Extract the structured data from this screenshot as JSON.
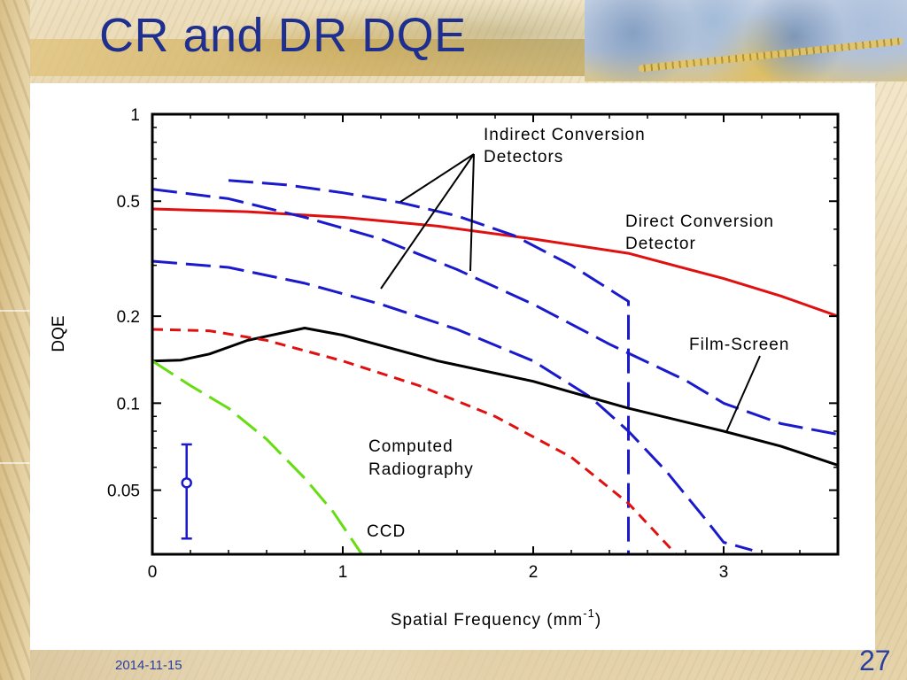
{
  "slide": {
    "title": "CR and DR DQE",
    "date": "2014-11-15",
    "page_number": "27"
  },
  "colors": {
    "title": "#1f2f8f",
    "footer": "#2a3f9f",
    "direct": "#e01010",
    "indirect": "#1a1acc",
    "film": "#000000",
    "cr": "#e01010",
    "ccd": "#66dd11"
  },
  "chart_data": {
    "type": "line",
    "title": "",
    "xlabel": "Spatial Frequency (mm",
    "xlabel_sup": "-1",
    "xlabel_end": ")",
    "ylabel": "DQE",
    "yscale": "log",
    "xlim": [
      0,
      3.6
    ],
    "ylim": [
      0.03,
      1
    ],
    "x_ticks": [
      {
        "value": 0,
        "label": "0"
      },
      {
        "value": 1,
        "label": "1"
      },
      {
        "value": 2,
        "label": "2"
      },
      {
        "value": 3,
        "label": "3"
      }
    ],
    "y_ticks": [
      {
        "value": 1,
        "label": "1"
      },
      {
        "value": 0.5,
        "label": "0.5"
      },
      {
        "value": 0.2,
        "label": "0.2"
      },
      {
        "value": 0.1,
        "label": "0.1"
      },
      {
        "value": 0.05,
        "label": "0.05"
      }
    ],
    "grid": false,
    "series": [
      {
        "key": "direct",
        "style": "solid",
        "color": "#e01010",
        "points": [
          [
            0,
            0.47
          ],
          [
            0.5,
            0.46
          ],
          [
            1.0,
            0.44
          ],
          [
            1.5,
            0.41
          ],
          [
            2.0,
            0.37
          ],
          [
            2.5,
            0.33
          ],
          [
            3.0,
            0.27
          ],
          [
            3.3,
            0.235
          ],
          [
            3.6,
            0.2
          ]
        ]
      },
      {
        "key": "indirect_1",
        "style": "dashed",
        "color": "#1a1acc",
        "points": [
          [
            0.4,
            0.59
          ],
          [
            0.7,
            0.57
          ],
          [
            1.0,
            0.535
          ],
          [
            1.3,
            0.495
          ],
          [
            1.6,
            0.445
          ],
          [
            1.9,
            0.38
          ],
          [
            2.2,
            0.3
          ],
          [
            2.5,
            0.225
          ],
          [
            2.5,
            0.03
          ]
        ]
      },
      {
        "key": "indirect_2",
        "style": "dashed",
        "color": "#1a1acc",
        "points": [
          [
            0,
            0.55
          ],
          [
            0.4,
            0.51
          ],
          [
            0.8,
            0.44
          ],
          [
            1.2,
            0.37
          ],
          [
            1.6,
            0.29
          ],
          [
            2.0,
            0.22
          ],
          [
            2.4,
            0.16
          ],
          [
            2.8,
            0.12
          ],
          [
            3.0,
            0.1
          ],
          [
            3.3,
            0.085
          ],
          [
            3.6,
            0.078
          ]
        ]
      },
      {
        "key": "indirect_3",
        "style": "dashed",
        "color": "#1a1acc",
        "points": [
          [
            0,
            0.31
          ],
          [
            0.4,
            0.295
          ],
          [
            0.8,
            0.26
          ],
          [
            1.2,
            0.22
          ],
          [
            1.6,
            0.18
          ],
          [
            2.0,
            0.14
          ],
          [
            2.3,
            0.105
          ],
          [
            2.5,
            0.08
          ],
          [
            2.7,
            0.058
          ],
          [
            2.9,
            0.04
          ],
          [
            3.0,
            0.033
          ],
          [
            3.15,
            0.031
          ]
        ]
      },
      {
        "key": "film_screen",
        "style": "solid",
        "color": "#000000",
        "points": [
          [
            0,
            0.14
          ],
          [
            0.15,
            0.141
          ],
          [
            0.3,
            0.148
          ],
          [
            0.5,
            0.165
          ],
          [
            0.8,
            0.182
          ],
          [
            1.0,
            0.172
          ],
          [
            1.5,
            0.14
          ],
          [
            2.0,
            0.119
          ],
          [
            2.5,
            0.096
          ],
          [
            3.0,
            0.08
          ],
          [
            3.3,
            0.071
          ],
          [
            3.6,
            0.061
          ]
        ]
      },
      {
        "key": "computed_radiography",
        "style": "dashed",
        "color": "#e01010",
        "points": [
          [
            0,
            0.18
          ],
          [
            0.3,
            0.178
          ],
          [
            0.6,
            0.165
          ],
          [
            1.0,
            0.14
          ],
          [
            1.4,
            0.115
          ],
          [
            1.8,
            0.09
          ],
          [
            2.2,
            0.065
          ],
          [
            2.5,
            0.045
          ],
          [
            2.75,
            0.03
          ]
        ]
      },
      {
        "key": "ccd",
        "style": "dashed",
        "color": "#66dd11",
        "points": [
          [
            0,
            0.14
          ],
          [
            0.2,
            0.115
          ],
          [
            0.4,
            0.096
          ],
          [
            0.6,
            0.075
          ],
          [
            0.8,
            0.055
          ],
          [
            0.95,
            0.042
          ],
          [
            1.1,
            0.03
          ]
        ]
      }
    ],
    "error_bar": {
      "x": 0.18,
      "y": 0.053,
      "y_low": 0.034,
      "y_high": 0.072,
      "color": "#1a1acc"
    },
    "annotations": {
      "indirect": {
        "lines": [
          "Indirect Conversion",
          "Detectors"
        ]
      },
      "direct": {
        "lines": [
          "Direct Conversion",
          "Detector"
        ]
      },
      "film": {
        "lines": [
          "Film-Screen"
        ]
      },
      "cr": {
        "lines": [
          "Computed",
          "Radiography"
        ]
      },
      "ccd": {
        "lines": [
          "CCD"
        ]
      }
    }
  }
}
